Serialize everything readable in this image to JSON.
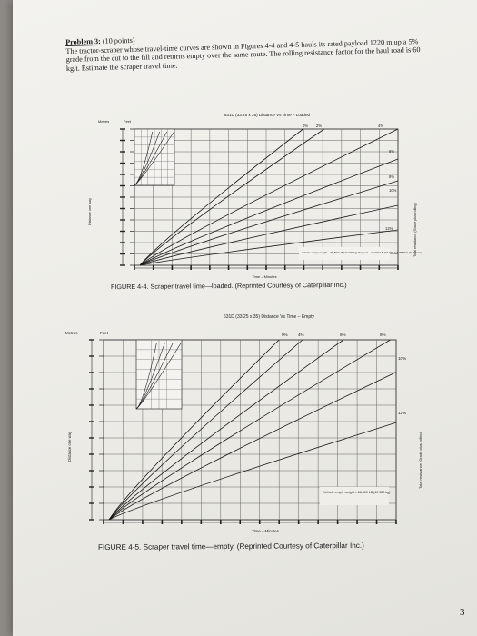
{
  "problem": {
    "title": "Problem 3:",
    "points": "(10 points)",
    "body": "The tractor-scraper whose travel-time curves are shown in Figures 4-4 and 4-5 hauls its rated payload 1220 m up a 5% grade from the cut to the fill and returns empty over the same route. The rolling resistance factor for the haul road is 60 kg/t. Estimate the scraper travel time."
  },
  "page_number": "3",
  "chart_data": [
    {
      "type": "line",
      "title": "631D (33.25 x 35) Distance Vs Time – Loaded",
      "xlabel": "Time – Minutes",
      "ylabel_left_1": "Metres",
      "ylabel_left_2": "Feet",
      "ylabel_side": "Distance one way",
      "ylabel_right": "Total resistance (Grade plus rolling)",
      "note": "Vehicle empty weight – 68,800 LB (40 320 kg) Payload – 75,000 LB (34 020 kg) 25 BCY (19.6 bcm)",
      "caption": "FIGURE 4-4. Scraper travel time—loaded. (Reprinted Courtesy of Caterpillar Inc.)",
      "series_labels_top": [
        "0%",
        "2%",
        "4%"
      ],
      "series_labels_right": [
        "6%",
        "8%",
        "10%",
        "12%"
      ],
      "grid": true
    },
    {
      "type": "line",
      "title": "631D (33.25 x 35) Distance Vs Time – Empty",
      "xlabel": "Time – Minutes",
      "ylabel_left_1": "Metres",
      "ylabel_left_2": "Feet",
      "ylabel_side": "Distance one way",
      "ylabel_right": "Total resistance (Grade plus rolling)",
      "note": "Vehicle empty weight – 68,800 LB (40 320 kg)",
      "caption": "FIGURE 4-5. Scraper travel time—empty. (Reprinted Courtesy of Caterpillar Inc.)",
      "series_labels_top": [
        "0%",
        "4%",
        "6%",
        "8%"
      ],
      "series_labels_right": [
        "10%",
        "12%"
      ],
      "grid": true
    }
  ]
}
